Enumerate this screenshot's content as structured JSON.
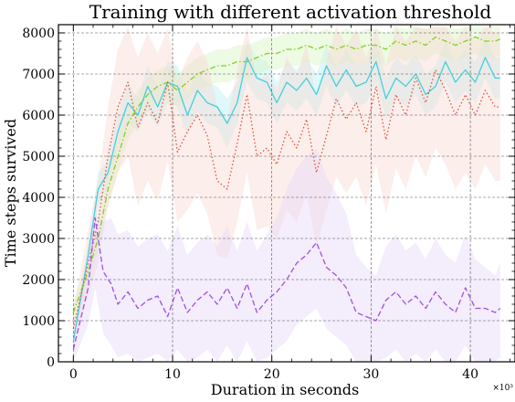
{
  "chart_data": {
    "type": "line",
    "title": "Training with different activation threshold",
    "xlabel": "Duration in seconds",
    "ylabel": "Time steps survived",
    "x_multiplier_label": "×10³",
    "xlim": [
      -1.5,
      44.5
    ],
    "ylim": [
      0,
      8200
    ],
    "xticks": [
      0,
      10,
      20,
      30,
      40
    ],
    "yticks": [
      0,
      1000,
      2000,
      3000,
      4000,
      5000,
      6000,
      7000,
      8000
    ],
    "grid": true,
    "series": [
      {
        "color": "#43d0dc",
        "dash": "solid",
        "band_color": "#b8f0f4",
        "x": [
          0,
          1.5,
          2.5,
          3.5,
          4.5,
          5.5,
          6.5,
          7.5,
          8.5,
          9.5,
          10.5,
          11.5,
          12.5,
          13.5,
          14.5,
          15.5,
          16.5,
          17.5,
          18.5,
          19.5,
          20.5,
          21.5,
          22.5,
          23.5,
          24.5,
          25.5,
          26.5,
          27.5,
          28.5,
          29.5,
          30.5,
          31.5,
          32.5,
          33.5,
          34.5,
          35.5,
          36.5,
          37.5,
          38.5,
          39.5,
          40.5,
          41.5,
          42.5,
          43.0
        ],
        "y": [
          500,
          2600,
          4200,
          4600,
          5600,
          6300,
          6000,
          6700,
          6200,
          6800,
          6700,
          6000,
          6600,
          6300,
          6200,
          5800,
          6300,
          7400,
          6900,
          6800,
          6300,
          6800,
          6600,
          6900,
          6500,
          7200,
          6700,
          7100,
          6700,
          6800,
          7300,
          6400,
          6900,
          6700,
          7000,
          6500,
          6700,
          7300,
          6800,
          7100,
          6800,
          7400,
          6900,
          6900
        ],
        "lower": [
          300,
          2300,
          3800,
          4300,
          5200,
          5800,
          5600,
          6100,
          5700,
          6300,
          6200,
          5500,
          6100,
          5800,
          5700,
          5200,
          5800,
          6800,
          6400,
          6300,
          5800,
          6300,
          6100,
          6400,
          6000,
          6700,
          6200,
          6600,
          6200,
          6300,
          6800,
          5900,
          6400,
          6200,
          6500,
          6000,
          6200,
          6800,
          6300,
          6600,
          6300,
          6900,
          6400,
          6400
        ],
        "upper": [
          700,
          2900,
          4600,
          4900,
          6000,
          6800,
          6400,
          7200,
          6700,
          7300,
          7200,
          6500,
          7100,
          6800,
          6700,
          6400,
          6800,
          7800,
          7400,
          7300,
          6800,
          7300,
          7100,
          7400,
          7000,
          7700,
          7200,
          7600,
          7200,
          7300,
          7800,
          6900,
          7400,
          7200,
          7500,
          7000,
          7200,
          7800,
          7300,
          7600,
          7300,
          7900,
          7400,
          7400
        ]
      },
      {
        "color": "#7ed321",
        "dash": "dashdot",
        "band_color": "#d8f5c4",
        "x": [
          0,
          1.5,
          2.5,
          3.5,
          4.5,
          5.5,
          6.5,
          7.5,
          8.5,
          9.5,
          10.5,
          11.5,
          12.5,
          13.5,
          14.5,
          15.5,
          16.5,
          17.5,
          18.5,
          19.5,
          20.5,
          21.5,
          22.5,
          23.5,
          24.5,
          25.5,
          26.5,
          27.5,
          28.5,
          29.5,
          30.5,
          31.5,
          32.5,
          33.5,
          34.5,
          35.5,
          36.5,
          37.5,
          38.5,
          39.5,
          40.5,
          41.5,
          42.5,
          43.0
        ],
        "y": [
          1200,
          2200,
          3000,
          4200,
          5000,
          5800,
          6200,
          6500,
          6700,
          6800,
          6600,
          6800,
          7000,
          7100,
          7200,
          7200,
          7300,
          7300,
          7400,
          7500,
          7500,
          7600,
          7600,
          7700,
          7600,
          7700,
          7600,
          7700,
          7600,
          7700,
          7700,
          7600,
          7800,
          7700,
          7800,
          7700,
          7900,
          7800,
          7700,
          7800,
          7900,
          7800,
          7800,
          7850
        ],
        "lower": [
          900,
          1900,
          2700,
          3800,
          4600,
          5400,
          5800,
          6100,
          6300,
          6400,
          6200,
          6400,
          6600,
          6700,
          6800,
          6800,
          6900,
          6900,
          7000,
          7100,
          7100,
          7200,
          7200,
          7300,
          7200,
          7300,
          7200,
          7300,
          7200,
          7300,
          7300,
          7200,
          7400,
          7300,
          7400,
          7300,
          7500,
          7400,
          7300,
          7400,
          7500,
          7400,
          7400,
          7450
        ],
        "upper": [
          1500,
          2500,
          3300,
          4600,
          5400,
          6200,
          6600,
          6900,
          7100,
          7200,
          7000,
          7200,
          7400,
          7500,
          7600,
          7600,
          7700,
          7700,
          7800,
          7900,
          7900,
          8000,
          8000,
          8100,
          8000,
          8100,
          8000,
          8100,
          8000,
          8100,
          8100,
          8000,
          8150,
          8100,
          8150,
          8100,
          8150,
          8150,
          8100,
          8150,
          8150,
          8150,
          8150,
          8150
        ]
      },
      {
        "color": "#e0503a",
        "dash": "dotted",
        "band_color": "#f9d9d3",
        "x": [
          0,
          1.5,
          2.5,
          3.5,
          4.5,
          5.5,
          6.5,
          7.5,
          8.5,
          9.5,
          10.5,
          11.5,
          12.5,
          13.5,
          14.5,
          15.5,
          16.5,
          17.5,
          18.5,
          19.5,
          20.5,
          21.5,
          22.5,
          23.5,
          24.5,
          25.5,
          26.5,
          27.5,
          28.5,
          29.5,
          30.5,
          31.5,
          32.5,
          33.5,
          34.5,
          35.5,
          36.5,
          37.5,
          38.5,
          39.5,
          40.5,
          41.5,
          42.5,
          43.0
        ],
        "y": [
          800,
          2400,
          3400,
          5000,
          6200,
          6800,
          5700,
          6300,
          5800,
          6800,
          5100,
          5600,
          6000,
          5500,
          4400,
          4200,
          5300,
          6500,
          5000,
          5200,
          4800,
          5600,
          5200,
          5900,
          4600,
          5500,
          6400,
          5900,
          6300,
          5600,
          6700,
          5400,
          6500,
          6000,
          6900,
          6300,
          7100,
          6600,
          6000,
          6500,
          6000,
          6600,
          6200,
          6200
        ],
        "lower": [
          400,
          1600,
          2400,
          3800,
          4600,
          5000,
          3800,
          4400,
          3900,
          4900,
          3400,
          3700,
          4100,
          3600,
          2600,
          2500,
          3400,
          4600,
          3200,
          3300,
          3000,
          3700,
          3400,
          4100,
          2800,
          3700,
          4500,
          4100,
          4500,
          3800,
          4800,
          3600,
          4700,
          4200,
          5000,
          4500,
          5200,
          4800,
          4200,
          4600,
          4200,
          4800,
          4400,
          4400
        ],
        "upper": [
          1300,
          3200,
          4400,
          6200,
          7600,
          8150,
          7400,
          8000,
          7500,
          8100,
          6800,
          7400,
          7800,
          7300,
          6200,
          5900,
          7100,
          8150,
          6800,
          7000,
          6600,
          7400,
          7000,
          7700,
          6400,
          7300,
          8150,
          7700,
          8100,
          7400,
          8150,
          7200,
          8150,
          7800,
          8150,
          8100,
          8150,
          8150,
          7800,
          8150,
          7800,
          8150,
          8000,
          8000
        ]
      },
      {
        "color": "#a050e0",
        "dash": "dashed",
        "band_color": "#e6d8f8",
        "x": [
          0,
          1.5,
          2.2,
          3.0,
          3.8,
          4.5,
          5.5,
          6.5,
          7.5,
          8.5,
          9.5,
          10.5,
          11.5,
          12.5,
          13.5,
          14.5,
          15.5,
          16.5,
          17.5,
          18.5,
          19.5,
          20.5,
          21.5,
          22.5,
          23.5,
          24.5,
          25.5,
          26.5,
          27.5,
          28.5,
          29.5,
          30.5,
          31.5,
          32.5,
          33.5,
          34.5,
          35.5,
          36.5,
          37.5,
          38.5,
          39.5,
          40.5,
          41.5,
          42.5,
          43.0
        ],
        "y": [
          300,
          1800,
          3500,
          2200,
          1900,
          1400,
          1700,
          1300,
          1500,
          1600,
          1100,
          1800,
          1200,
          1500,
          1700,
          1400,
          1800,
          1300,
          1900,
          1200,
          1500,
          1700,
          2000,
          2400,
          2600,
          2900,
          2300,
          2100,
          1800,
          1200,
          1100,
          1000,
          1500,
          1700,
          1400,
          1600,
          1300,
          1700,
          1400,
          1200,
          1800,
          1300,
          1300,
          1200,
          1300
        ],
        "lower": [
          0,
          900,
          1800,
          700,
          400,
          100,
          200,
          0,
          100,
          200,
          0,
          300,
          0,
          100,
          300,
          0,
          400,
          0,
          500,
          0,
          100,
          300,
          500,
          900,
          1100,
          1300,
          800,
          600,
          400,
          0,
          0,
          0,
          100,
          300,
          0,
          200,
          0,
          300,
          0,
          0,
          400,
          0,
          0,
          0,
          100
        ],
        "upper": [
          700,
          2700,
          3600,
          3400,
          3500,
          3100,
          3200,
          2800,
          3000,
          3100,
          2700,
          3300,
          2600,
          2900,
          3100,
          2800,
          3300,
          2700,
          3400,
          2700,
          3100,
          3500,
          4200,
          4700,
          5000,
          5200,
          4500,
          4100,
          3600,
          2600,
          2300,
          2100,
          2800,
          3100,
          2700,
          2900,
          2500,
          3000,
          2600,
          2400,
          3100,
          2500,
          2300,
          2100,
          2400
        ]
      }
    ]
  }
}
